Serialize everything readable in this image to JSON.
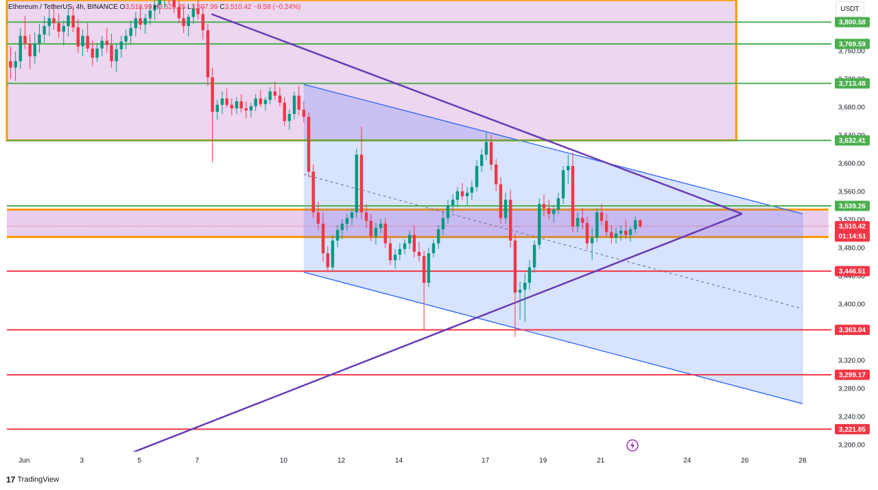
{
  "header": {
    "symbol": "Ethereum / TetherUS, 4h, BINANCE",
    "o_label": "O",
    "o_value": "3,518.99",
    "h_label": "H",
    "h_value": "3,520.45",
    "l_label": "L",
    "l_value": "3,507.99",
    "c_label": "C",
    "c_value": "3,510.42",
    "change": "−8.58 (−0.24%)"
  },
  "unit_button": "USDT",
  "branding": {
    "logo_mark": "17",
    "name": "TradingView"
  },
  "colors": {
    "up": "#089981",
    "down": "#f23645",
    "resistance": "#4caf50",
    "support": "#f23645",
    "orange": "#ff9800",
    "purple": "#673ab7",
    "channel": "#2962ff",
    "zone": "#ce93d8"
  },
  "chart_data": {
    "type": "candlestick",
    "title": "Ethereum / TetherUS, 4h, BINANCE",
    "x_ticks": [
      "Jun",
      "3",
      "5",
      "7",
      "10",
      "12",
      "14",
      "17",
      "19",
      "21",
      "24",
      "26",
      "28"
    ],
    "x_tick_days": [
      1,
      3,
      5,
      7,
      10,
      12,
      14,
      17,
      19,
      21,
      24,
      26,
      28
    ],
    "y_ticks": [
      "3,200.00",
      "3,240.00",
      "3,280.00",
      "3,320.00",
      "3,360.00",
      "3,400.00",
      "3,440.00",
      "3,480.00",
      "3,520.00",
      "3,560.00",
      "3,600.00",
      "3,640.00",
      "3,680.00",
      "3,720.00",
      "3,760.00"
    ],
    "y_tick_values": [
      3200,
      3240,
      3280,
      3320,
      3360,
      3400,
      3440,
      3480,
      3520,
      3560,
      3600,
      3640,
      3680,
      3720,
      3760
    ],
    "ylim": [
      3190,
      3832
    ],
    "xlim_days": [
      0.4,
      29.0
    ],
    "resistance_levels": [
      {
        "value": 3800.58,
        "label": "3,800.58"
      },
      {
        "value": 3769.59,
        "label": "3,769.59"
      },
      {
        "value": 3713.48,
        "label": "3,713.48"
      },
      {
        "value": 3632.41,
        "label": "3,632.41"
      },
      {
        "value": 3539.26,
        "label": "3,539.26"
      }
    ],
    "support_levels": [
      {
        "value": 3446.51,
        "label": "3,446.51"
      },
      {
        "value": 3363.04,
        "label": "3,363.04"
      },
      {
        "value": 3299.17,
        "label": "3,299.17"
      },
      {
        "value": 3221.85,
        "label": "3,221.85"
      }
    ],
    "current_price": {
      "value": 3510.42,
      "label": "3,510.42",
      "countdown": "01:14:51"
    },
    "supply_zone": {
      "from_day": 0.4,
      "to_day": 25.7,
      "top": 3832,
      "bottom": 3632.41
    },
    "demand_zone": {
      "from_day": 0.4,
      "to_day": 28.9,
      "top": 3534,
      "bottom": 3495
    },
    "descending_channel": {
      "upper": [
        [
          10.7,
          3712
        ],
        [
          28.0,
          3528
        ]
      ],
      "lower": [
        [
          10.7,
          3445
        ],
        [
          28.0,
          3258
        ]
      ],
      "mid": [
        [
          10.7,
          3584
        ],
        [
          28.0,
          3393
        ]
      ]
    },
    "triangle": {
      "upper": [
        [
          7.5,
          3812
        ],
        [
          25.9,
          3528
        ]
      ],
      "lower": [
        [
          4.4,
          3183
        ],
        [
          25.9,
          3528
        ]
      ]
    },
    "candles": [
      [
        0.53,
        3745,
        3766,
        3720,
        3736
      ],
      [
        0.7,
        3736,
        3759,
        3717,
        3745
      ],
      [
        0.87,
        3745,
        3792,
        3734,
        3781
      ],
      [
        1.03,
        3781,
        3809,
        3762,
        3770
      ],
      [
        1.2,
        3770,
        3783,
        3734,
        3752
      ],
      [
        1.37,
        3752,
        3786,
        3741,
        3770
      ],
      [
        1.53,
        3770,
        3798,
        3757,
        3783
      ],
      [
        1.7,
        3783,
        3809,
        3771,
        3795
      ],
      [
        1.87,
        3795,
        3819,
        3781,
        3806
      ],
      [
        2.03,
        3806,
        3826,
        3790,
        3799
      ],
      [
        2.2,
        3799,
        3813,
        3778,
        3787
      ],
      [
        2.37,
        3787,
        3803,
        3767,
        3795
      ],
      [
        2.53,
        3795,
        3820,
        3780,
        3810
      ],
      [
        2.7,
        3810,
        3824,
        3786,
        3793
      ],
      [
        2.87,
        3793,
        3805,
        3757,
        3766
      ],
      [
        3.03,
        3766,
        3790,
        3752,
        3781
      ],
      [
        3.2,
        3781,
        3799,
        3758,
        3763
      ],
      [
        3.37,
        3763,
        3774,
        3738,
        3750
      ],
      [
        3.53,
        3750,
        3771,
        3744,
        3763
      ],
      [
        3.7,
        3763,
        3780,
        3752,
        3774
      ],
      [
        3.87,
        3774,
        3792,
        3757,
        3768
      ],
      [
        4.03,
        3768,
        3784,
        3736,
        3745
      ],
      [
        4.2,
        3745,
        3770,
        3730,
        3762
      ],
      [
        4.37,
        3762,
        3781,
        3750,
        3773
      ],
      [
        4.53,
        3773,
        3790,
        3762,
        3781
      ],
      [
        4.7,
        3781,
        3803,
        3770,
        3792
      ],
      [
        4.87,
        3792,
        3815,
        3780,
        3806
      ],
      [
        5.03,
        3806,
        3822,
        3790,
        3797
      ],
      [
        5.2,
        3797,
        3812,
        3784,
        3806
      ],
      [
        5.37,
        3806,
        3826,
        3797,
        3817
      ],
      [
        5.53,
        3817,
        3836,
        3804,
        3825
      ],
      [
        5.7,
        3825,
        3844,
        3812,
        3834
      ],
      [
        5.87,
        3834,
        3845,
        3821,
        3839
      ],
      [
        6.03,
        3839,
        3846,
        3826,
        3834
      ],
      [
        6.2,
        3834,
        3844,
        3813,
        3822
      ],
      [
        6.37,
        3822,
        3838,
        3799,
        3806
      ],
      [
        6.53,
        3806,
        3823,
        3785,
        3795
      ],
      [
        6.7,
        3795,
        3812,
        3780,
        3808
      ],
      [
        6.87,
        3808,
        3827,
        3798,
        3820
      ],
      [
        7.03,
        3820,
        3834,
        3804,
        3812
      ],
      [
        7.2,
        3812,
        3823,
        3776,
        3789
      ],
      [
        7.37,
        3789,
        3798,
        3710,
        3722
      ],
      [
        7.53,
        3722,
        3736,
        3601,
        3673
      ],
      [
        7.7,
        3673,
        3690,
        3662,
        3683
      ],
      [
        7.87,
        3683,
        3702,
        3670,
        3692
      ],
      [
        8.03,
        3692,
        3706,
        3679,
        3683
      ],
      [
        8.2,
        3683,
        3692,
        3668,
        3678
      ],
      [
        8.37,
        3678,
        3694,
        3670,
        3688
      ],
      [
        8.53,
        3688,
        3698,
        3672,
        3678
      ],
      [
        8.7,
        3678,
        3688,
        3664,
        3675
      ],
      [
        8.87,
        3675,
        3686,
        3665,
        3681
      ],
      [
        9.03,
        3681,
        3698,
        3674,
        3692
      ],
      [
        9.2,
        3692,
        3704,
        3680,
        3684
      ],
      [
        9.37,
        3684,
        3694,
        3675,
        3690
      ],
      [
        9.53,
        3690,
        3708,
        3684,
        3702
      ],
      [
        9.7,
        3702,
        3716,
        3690,
        3696
      ],
      [
        9.87,
        3696,
        3708,
        3681,
        3686
      ],
      [
        10.03,
        3686,
        3694,
        3653,
        3660
      ],
      [
        10.2,
        3660,
        3676,
        3648,
        3670
      ],
      [
        10.37,
        3670,
        3702,
        3662,
        3696
      ],
      [
        10.53,
        3696,
        3710,
        3668,
        3676
      ],
      [
        10.7,
        3676,
        3688,
        3658,
        3666
      ],
      [
        10.87,
        3666,
        3672,
        3580,
        3588
      ],
      [
        11.03,
        3588,
        3598,
        3522,
        3530
      ],
      [
        11.2,
        3530,
        3545,
        3505,
        3514
      ],
      [
        11.37,
        3514,
        3530,
        3460,
        3472
      ],
      [
        11.53,
        3472,
        3482,
        3445,
        3452
      ],
      [
        11.7,
        3452,
        3498,
        3446,
        3490
      ],
      [
        11.87,
        3490,
        3512,
        3480,
        3505
      ],
      [
        12.03,
        3505,
        3520,
        3492,
        3514
      ],
      [
        12.2,
        3514,
        3528,
        3504,
        3522
      ],
      [
        12.37,
        3522,
        3535,
        3512,
        3530
      ],
      [
        12.53,
        3530,
        3620,
        3522,
        3612
      ],
      [
        12.7,
        3612,
        3652,
        3520,
        3530
      ],
      [
        12.87,
        3530,
        3542,
        3508,
        3518
      ],
      [
        13.03,
        3518,
        3528,
        3489,
        3496
      ],
      [
        13.2,
        3496,
        3515,
        3484,
        3508
      ],
      [
        13.37,
        3508,
        3521,
        3500,
        3514
      ],
      [
        13.53,
        3514,
        3522,
        3479,
        3486
      ],
      [
        13.7,
        3486,
        3494,
        3455,
        3462
      ],
      [
        13.87,
        3462,
        3478,
        3450,
        3470
      ],
      [
        14.03,
        3470,
        3486,
        3462,
        3478
      ],
      [
        14.2,
        3478,
        3492,
        3470,
        3486
      ],
      [
        14.37,
        3486,
        3504,
        3478,
        3498
      ],
      [
        14.53,
        3498,
        3512,
        3466,
        3474
      ],
      [
        14.7,
        3474,
        3488,
        3460,
        3468
      ],
      [
        14.87,
        3468,
        3476,
        3363,
        3430
      ],
      [
        15.03,
        3430,
        3480,
        3424,
        3472
      ],
      [
        15.2,
        3472,
        3492,
        3466,
        3486
      ],
      [
        15.37,
        3486,
        3512,
        3478,
        3506
      ],
      [
        15.53,
        3506,
        3530,
        3498,
        3522
      ],
      [
        15.7,
        3522,
        3548,
        3514,
        3540
      ],
      [
        15.87,
        3540,
        3556,
        3530,
        3548
      ],
      [
        16.03,
        3548,
        3566,
        3538,
        3560
      ],
      [
        16.2,
        3560,
        3572,
        3548,
        3553
      ],
      [
        16.37,
        3553,
        3566,
        3540,
        3558
      ],
      [
        16.53,
        3558,
        3575,
        3548,
        3566
      ],
      [
        16.7,
        3566,
        3604,
        3560,
        3596
      ],
      [
        16.87,
        3596,
        3620,
        3588,
        3612
      ],
      [
        17.03,
        3612,
        3644,
        3604,
        3630
      ],
      [
        17.2,
        3630,
        3640,
        3590,
        3598
      ],
      [
        17.37,
        3598,
        3606,
        3560,
        3570
      ],
      [
        17.53,
        3570,
        3580,
        3514,
        3522
      ],
      [
        17.7,
        3522,
        3558,
        3514,
        3548
      ],
      [
        17.87,
        3548,
        3562,
        3480,
        3490
      ],
      [
        18.03,
        3490,
        3500,
        3353,
        3416
      ],
      [
        18.2,
        3416,
        3432,
        3378,
        3420
      ],
      [
        18.37,
        3420,
        3444,
        3374,
        3430
      ],
      [
        18.53,
        3430,
        3462,
        3420,
        3452
      ],
      [
        18.7,
        3452,
        3490,
        3444,
        3484
      ],
      [
        18.87,
        3484,
        3550,
        3478,
        3542
      ],
      [
        19.03,
        3542,
        3555,
        3524,
        3536
      ],
      [
        19.2,
        3536,
        3548,
        3520,
        3528
      ],
      [
        19.37,
        3528,
        3540,
        3516,
        3534
      ],
      [
        19.53,
        3534,
        3558,
        3528,
        3550
      ],
      [
        19.7,
        3550,
        3596,
        3542,
        3590
      ],
      [
        19.87,
        3590,
        3612,
        3570,
        3596
      ],
      [
        20.03,
        3596,
        3615,
        3502,
        3510
      ],
      [
        20.2,
        3510,
        3530,
        3502,
        3522
      ],
      [
        20.37,
        3522,
        3536,
        3506,
        3515
      ],
      [
        20.53,
        3515,
        3524,
        3478,
        3486
      ],
      [
        20.7,
        3486,
        3508,
        3462,
        3494
      ],
      [
        20.87,
        3494,
        3536,
        3488,
        3530
      ],
      [
        21.03,
        3530,
        3542,
        3512,
        3518
      ],
      [
        21.2,
        3518,
        3528,
        3496,
        3502
      ],
      [
        21.37,
        3502,
        3512,
        3486,
        3494
      ],
      [
        21.53,
        3494,
        3508,
        3486,
        3500
      ],
      [
        21.7,
        3500,
        3512,
        3490,
        3504
      ],
      [
        21.87,
        3504,
        3520,
        3492,
        3498
      ],
      [
        22.03,
        3498,
        3510,
        3488,
        3506
      ],
      [
        22.2,
        3506,
        3524,
        3500,
        3519
      ],
      [
        22.37,
        3519,
        3520,
        3508,
        3510
      ]
    ]
  }
}
